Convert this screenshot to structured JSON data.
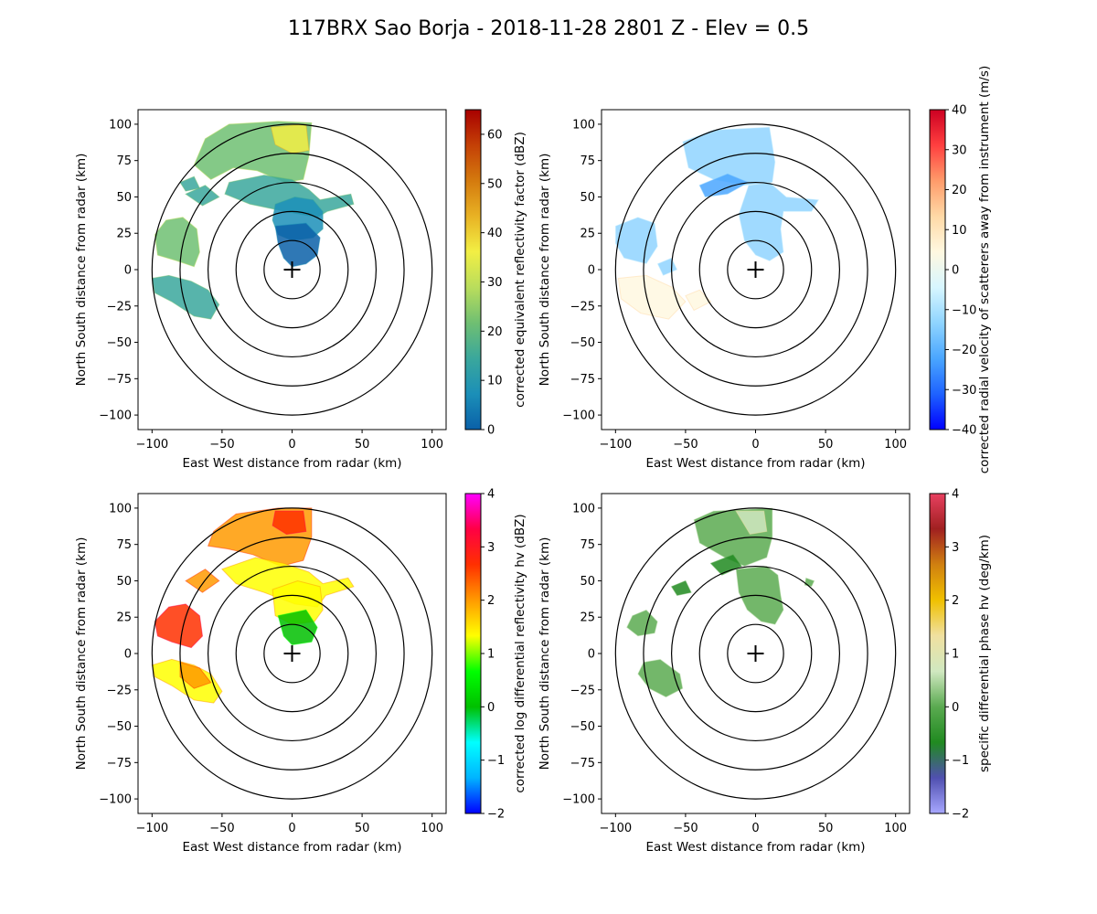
{
  "title": "117BRX Sao Borja - 2018-11-28 2801 Z -  Elev = 0.5",
  "chart_data": [
    {
      "type": "heatmap",
      "name": "reflectivity",
      "xlabel": "East West distance from radar (km)",
      "ylabel": "North South distance from radar (km)",
      "xlim": [
        -110,
        110
      ],
      "ylim": [
        -110,
        110
      ],
      "xticks": [
        -100,
        -50,
        0,
        50,
        100
      ],
      "yticks": [
        -100,
        -75,
        -50,
        -25,
        0,
        25,
        50,
        75,
        100
      ],
      "range_rings_km": [
        20,
        40,
        60,
        80,
        100
      ],
      "colorbar": {
        "label": "corrected equivalent reflectivity factor (dBZ)",
        "min": 0,
        "max": 65,
        "ticks": [
          0,
          10,
          20,
          30,
          40,
          50,
          60
        ],
        "colors": [
          "#0a60a8",
          "#1b8fb8",
          "#3aa79c",
          "#6fbf72",
          "#b9dd5c",
          "#f2ef44",
          "#e8b224",
          "#d47a0e",
          "#c44006",
          "#a80000"
        ]
      }
    },
    {
      "type": "heatmap",
      "name": "velocity",
      "xlabel": "East West distance from radar (km)",
      "ylabel": "North South distance from radar (km)",
      "xlim": [
        -110,
        110
      ],
      "ylim": [
        -110,
        110
      ],
      "xticks": [
        -100,
        -50,
        0,
        50,
        100
      ],
      "yticks": [
        -100,
        -75,
        -50,
        -25,
        0,
        25,
        50,
        75,
        100
      ],
      "range_rings_km": [
        20,
        40,
        60,
        80,
        100
      ],
      "colorbar": {
        "label": "corrected radial velocity of scatterers away from instrument (m/s)",
        "min": -40,
        "max": 40,
        "ticks": [
          -40,
          -30,
          -20,
          -10,
          0,
          10,
          20,
          30,
          40
        ],
        "colors": [
          "#0000ff",
          "#1e62ff",
          "#4aa6ff",
          "#8fd4ff",
          "#d7f6ff",
          "#fff8e0",
          "#ffd9a6",
          "#ff9b6a",
          "#ff3f3f",
          "#cc0022"
        ]
      }
    },
    {
      "type": "heatmap",
      "name": "differential_reflectivity",
      "xlabel": "East West distance from radar (km)",
      "ylabel": "North South distance from radar (km)",
      "xlim": [
        -110,
        110
      ],
      "ylim": [
        -110,
        110
      ],
      "xticks": [
        -100,
        -50,
        0,
        50,
        100
      ],
      "yticks": [
        -100,
        -75,
        -50,
        -25,
        0,
        25,
        50,
        75,
        100
      ],
      "range_rings_km": [
        20,
        40,
        60,
        80,
        100
      ],
      "colorbar": {
        "label": "corrected log differential reflectivity hv (dBZ)",
        "min": -2,
        "max": 4,
        "ticks": [
          -2,
          -1,
          0,
          1,
          2,
          3,
          4
        ],
        "colors": [
          "#0000ff",
          "#00b4ff",
          "#00ffff",
          "#00c000",
          "#00ff00",
          "#ffff00",
          "#ff9a00",
          "#ff3000",
          "#ff0044",
          "#ff00ff"
        ]
      }
    },
    {
      "type": "heatmap",
      "name": "specific_differential_phase",
      "xlabel": "East West distance from radar (km)",
      "ylabel": "North South distance from radar (km)",
      "xlim": [
        -110,
        110
      ],
      "ylim": [
        -110,
        110
      ],
      "xticks": [
        -100,
        -50,
        0,
        50,
        100
      ],
      "yticks": [
        -100,
        -75,
        -50,
        -25,
        0,
        25,
        50,
        75,
        100
      ],
      "range_rings_km": [
        20,
        40,
        60,
        80,
        100
      ],
      "colorbar": {
        "label": "specific differential phase hv (deg/km)",
        "min": -2,
        "max": 4,
        "ticks": [
          -2,
          -1,
          0,
          1,
          2,
          3,
          4
        ],
        "colors": [
          "#a8a8ff",
          "#5050b0",
          "#208a20",
          "#5aaa50",
          "#d0e8c0",
          "#f0e0a0",
          "#f0c000",
          "#d08010",
          "#a02020",
          "#e84060"
        ]
      }
    }
  ]
}
